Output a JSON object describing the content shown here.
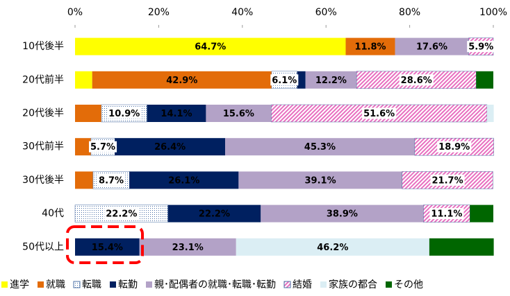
{
  "chart_data": {
    "type": "stacked-barh",
    "categories": [
      "10代後半",
      "20代前半",
      "20代後半",
      "30代前半",
      "30代後半",
      "40代",
      "50代以上"
    ],
    "xlim": [
      0,
      100
    ],
    "xticks": [
      {
        "value": 0,
        "label": "0%"
      },
      {
        "value": 20,
        "label": "20%"
      },
      {
        "value": 40,
        "label": "40%"
      },
      {
        "value": 60,
        "label": "60%"
      },
      {
        "value": 80,
        "label": "80%"
      },
      {
        "value": 100,
        "label": "100%"
      }
    ],
    "legend": "bottom",
    "series": [
      {
        "name": "進学",
        "color": "#ffff00",
        "values": [
          64.7,
          4.1,
          null,
          null,
          null,
          null,
          null
        ],
        "value_labels": [
          "64.7%",
          null,
          null,
          null,
          null,
          null,
          null
        ]
      },
      {
        "name": "就職",
        "color": "#e36c09",
        "values": [
          11.8,
          42.9,
          6.3,
          3.8,
          4.3,
          null,
          null
        ],
        "value_labels": [
          "11.8%",
          "42.9%",
          null,
          null,
          null,
          null,
          null
        ]
      },
      {
        "name": "転職",
        "color": "#ffffff",
        "pattern": "dots",
        "values": [
          null,
          6.1,
          10.9,
          5.7,
          8.7,
          22.2,
          null
        ],
        "value_labels": [
          null,
          "6.1%",
          "10.9%",
          "5.7%",
          "8.7%",
          "22.2%",
          null
        ]
      },
      {
        "name": "転勤",
        "color": "#002060",
        "values": [
          null,
          2.0,
          14.1,
          26.4,
          26.1,
          22.2,
          15.4
        ],
        "value_labels": [
          null,
          null,
          "14.1%",
          "26.4%",
          "26.1%",
          "22.2%",
          "15.4%"
        ]
      },
      {
        "name": "親･配偶者の就職･転職･転勤",
        "color": "#b3a2c7",
        "values": [
          17.6,
          12.2,
          15.6,
          45.3,
          39.1,
          38.9,
          23.1
        ],
        "value_labels": [
          "17.6%",
          "12.2%",
          "15.6%",
          "45.3%",
          "39.1%",
          "38.9%",
          "23.1%"
        ]
      },
      {
        "name": "結婚",
        "color": "#ff66cc",
        "pattern": "hatch",
        "values": [
          5.9,
          28.6,
          51.6,
          18.9,
          21.7,
          11.1,
          null
        ],
        "value_labels": [
          "5.9%",
          "28.6%",
          "51.6%",
          "18.9%",
          "21.7%",
          "11.1%",
          null
        ]
      },
      {
        "name": "家族の都合",
        "color": "#dbeef4",
        "values": [
          null,
          null,
          1.6,
          null,
          null,
          null,
          46.2
        ],
        "value_labels": [
          null,
          null,
          null,
          null,
          null,
          null,
          "46.2%"
        ]
      },
      {
        "name": "その他",
        "color": "#006600",
        "values": [
          null,
          4.1,
          null,
          null,
          null,
          5.6,
          15.4
        ],
        "value_labels": [
          null,
          null,
          null,
          null,
          null,
          null,
          null
        ]
      }
    ]
  }
}
